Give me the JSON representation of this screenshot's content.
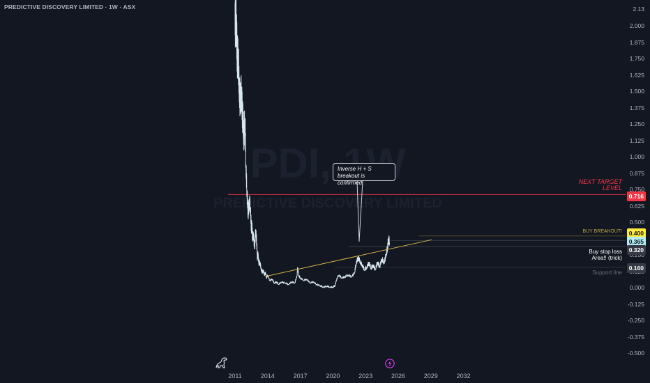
{
  "header": {
    "title": "PREDICTIVE DISCOVERY LIMITED · 1W · ASX"
  },
  "watermark": {
    "symbol": "PDI, 1W",
    "subtitle": "PREDICTIVE DISCOVERY LIMITED"
  },
  "colors": {
    "background": "#131722",
    "price_line": "#d8e7ef",
    "trendline": "#d7b34a",
    "target_line": "#f23645",
    "target_tag": "#f23645",
    "buy_tag": "#ffeb3b",
    "current_tag": "#b2ebf2",
    "gray_tag": "#363a45"
  },
  "chart_data": {
    "type": "line",
    "title": "PREDICTIVE DISCOVERY LIMITED · 1W · ASX",
    "xlabel": "",
    "ylabel": "",
    "xlim": [
      2010.0,
      2035.5
    ],
    "ylim": [
      -0.56,
      2.18
    ],
    "x_ticks": [
      "2011",
      "2014",
      "2017",
      "2020",
      "2023",
      "2026",
      "2029",
      "2032"
    ],
    "y_ticks": [
      "2.13",
      "2.000",
      "1.875",
      "1.750",
      "1.625",
      "1.500",
      "1.375",
      "1.250",
      "1.125",
      "1.000",
      "0.875",
      "0.750",
      "0.625",
      "0.500",
      "0.375",
      "0.250",
      "0.125",
      "0.000",
      "-0.125",
      "-0.250",
      "-0.375",
      "-0.500"
    ],
    "series": [
      {
        "name": "",
        "x": [
          2011.0,
          2011.05,
          2011.12,
          2011.2,
          2011.3,
          2011.4,
          2011.5,
          2011.6,
          2011.68,
          2011.75,
          2011.82,
          2011.9,
          2012.0,
          2012.1,
          2012.2,
          2012.3,
          2012.4,
          2012.5,
          2012.55,
          2012.6,
          2012.7,
          2012.8,
          2012.9,
          2013.0,
          2013.05,
          2013.1,
          2013.2,
          2013.3,
          2013.4,
          2013.5,
          2013.6,
          2013.7,
          2013.8,
          2013.9,
          2014.0,
          2014.2,
          2014.4,
          2014.6,
          2014.8,
          2015.0,
          2015.3,
          2015.6,
          2015.9,
          2016.2,
          2016.5,
          2016.7,
          2016.75,
          2016.85,
          2017.0,
          2017.3,
          2017.6,
          2017.9,
          2018.2,
          2018.5,
          2018.8,
          2019.1,
          2019.4,
          2019.7,
          2020.0,
          2020.2,
          2020.3,
          2020.5,
          2020.8,
          2021.1,
          2021.4,
          2021.7,
          2022.0,
          2022.1,
          2022.3,
          2022.5,
          2022.7,
          2022.9,
          2023.1,
          2023.3,
          2023.5,
          2023.7,
          2023.9,
          2024.1,
          2024.3,
          2024.5,
          2024.7,
          2024.9,
          2025.0,
          2025.1,
          2025.2
        ],
        "values": [
          2.18,
          1.95,
          2.05,
          1.82,
          1.7,
          1.55,
          1.4,
          1.5,
          1.35,
          1.25,
          1.15,
          1.3,
          0.95,
          0.75,
          0.55,
          0.68,
          0.62,
          0.45,
          0.5,
          0.38,
          0.42,
          0.3,
          0.45,
          0.35,
          0.22,
          0.28,
          0.18,
          0.2,
          0.15,
          0.12,
          0.14,
          0.1,
          0.12,
          0.08,
          0.1,
          0.06,
          0.07,
          0.04,
          0.05,
          0.03,
          0.05,
          0.04,
          0.03,
          0.05,
          0.04,
          0.1,
          0.16,
          0.1,
          0.08,
          0.06,
          0.07,
          0.04,
          0.05,
          0.03,
          0.02,
          0.01,
          0.015,
          0.01,
          0.01,
          0.02,
          0.06,
          0.1,
          0.08,
          0.09,
          0.1,
          0.09,
          0.12,
          0.18,
          0.24,
          0.2,
          0.18,
          0.14,
          0.16,
          0.2,
          0.15,
          0.18,
          0.14,
          0.2,
          0.17,
          0.22,
          0.2,
          0.26,
          0.3,
          0.38,
          0.35
        ]
      }
    ],
    "trendline": {
      "x": [
        2012.5,
        2026.5
      ],
      "y": [
        0.08,
        0.36
      ]
    },
    "levels": [
      {
        "label": "NEXT TARGET LEVEL",
        "value": 0.716
      },
      {
        "label": "BUY BREAKOUT!",
        "value": 0.4
      },
      {
        "label": "",
        "value": 0.365
      },
      {
        "label": "Buy stop loss Area!! (trick)",
        "value": 0.32
      },
      {
        "label": "Support line",
        "value": 0.16
      }
    ],
    "grid": false,
    "legend": "none"
  },
  "price_tags": {
    "target": "0.716",
    "buy": "0.400",
    "current": "0.365",
    "stop": "0.320",
    "support": "0.160"
  },
  "annotations": {
    "next_target_line1": "NEXT TARGET",
    "next_target_line2": "LEVEL",
    "buy_breakout": "BUY BREAKOUT!",
    "stop_loss_line1": "Buy stop loss",
    "stop_loss_line2": "Area!! (trick)",
    "support_line": "Support line",
    "callout_line1": "Inverse H + S",
    "callout_line2": "breakout is confirmed."
  },
  "icons": {
    "logo": "dinosaur-icon",
    "event": "lightning-icon"
  }
}
